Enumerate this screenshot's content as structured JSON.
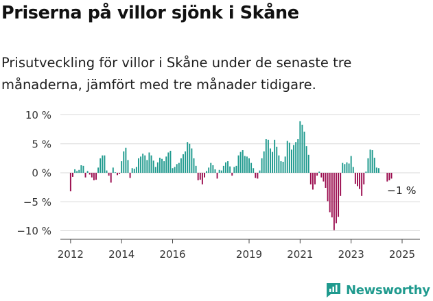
{
  "title": "Priserna på villor sjönk i Skåne",
  "subtitle": "Prisutveckling för villor i Skåne under de senaste tre månaderna, jämfört med tre månader tidigare.",
  "brand": "Newsworthy",
  "logo_icon": "bar-chart-logo-icon",
  "colors": {
    "positive": "#1f9a8e",
    "negative": "#9b0d4f",
    "grid": "#d9d9d9",
    "brand": "#1f9a8e"
  },
  "chart_data": {
    "type": "bar",
    "ylim": [
      -11,
      11
    ],
    "yticks": [
      10,
      5,
      0,
      -5,
      -10
    ],
    "ytick_labels": [
      "10 %",
      "5 %",
      "0 %",
      "−5 %",
      "−10 %"
    ],
    "xlim": [
      2011.6,
      2025.7
    ],
    "xticks": [
      2012,
      2014,
      2016,
      2019,
      2021,
      2023,
      2025
    ],
    "xtick_labels": [
      "2012",
      "2014",
      "2016",
      "2019",
      "2021",
      "2023",
      "2025"
    ],
    "grid": true,
    "annotation": "−1 %",
    "x_start": "2012-01",
    "values": [
      -3.2,
      -0.7,
      0.6,
      0.3,
      0.5,
      1.3,
      1.2,
      -0.8,
      0.3,
      -0.3,
      -0.8,
      -1.3,
      -1.2,
      0.9,
      2.5,
      3.0,
      3.0,
      0.4,
      -0.5,
      -1.7,
      0.9,
      0.1,
      -0.4,
      -0.2,
      2.0,
      3.7,
      4.3,
      2.2,
      -0.9,
      0.8,
      0.7,
      1.0,
      2.5,
      2.8,
      3.3,
      3.0,
      2.2,
      3.5,
      3.0,
      2.1,
      1.0,
      1.8,
      2.6,
      2.4,
      2.0,
      2.8,
      3.5,
      3.8,
      0.8,
      1.0,
      1.5,
      1.7,
      2.5,
      3.2,
      3.7,
      5.3,
      5.0,
      4.2,
      2.5,
      1.2,
      -1.3,
      -1.2,
      -2.0,
      -0.8,
      0.3,
      0.9,
      1.7,
      1.3,
      0.6,
      -1.0,
      0.5,
      0.4,
      1.2,
      1.8,
      2.0,
      1.1,
      -0.5,
      1.0,
      1.2,
      3.0,
      3.6,
      3.9,
      2.9,
      2.8,
      2.5,
      1.7,
      0.8,
      -0.9,
      -1.0,
      0.4,
      2.5,
      3.7,
      5.8,
      5.7,
      4.2,
      3.6,
      5.7,
      4.5,
      3.0,
      2.0,
      1.9,
      2.8,
      5.5,
      5.2,
      4.0,
      4.8,
      5.3,
      5.8,
      8.9,
      8.3,
      7.1,
      4.6,
      3.1,
      -2.0,
      -2.9,
      -2.0,
      -0.5,
      0.2,
      -0.8,
      -1.5,
      -2.6,
      -4.9,
      -6.8,
      -7.7,
      -9.9,
      -8.7,
      -7.6,
      -4.0,
      1.7,
      1.5,
      1.8,
      1.6,
      2.9,
      1.0,
      -1.9,
      -2.3,
      -2.8,
      -4.0,
      -2.0,
      0.2,
      2.5,
      4.0,
      3.9,
      2.6,
      0.9,
      0.8,
      0.0,
      0.0,
      0.0,
      -1.5,
      -1.3,
      -1.0
    ]
  }
}
